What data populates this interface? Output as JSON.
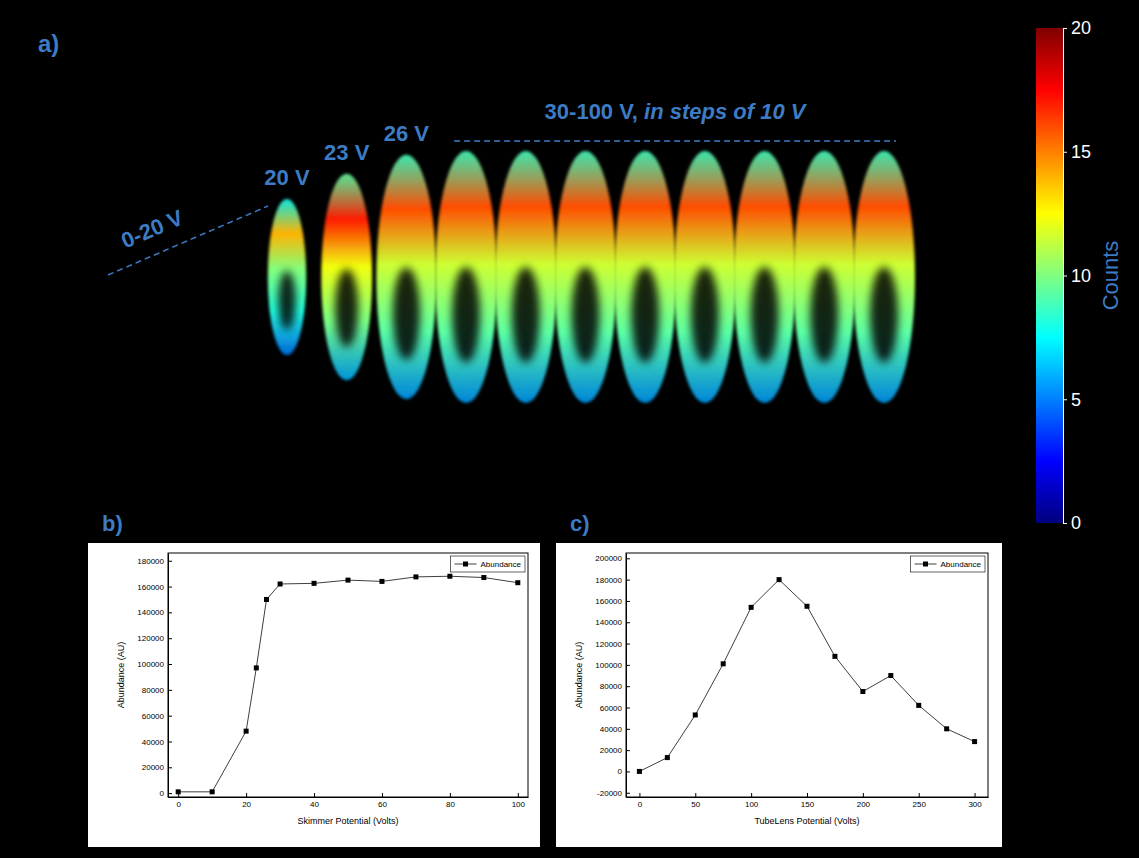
{
  "chart_data": [
    {
      "type": "image",
      "panel": "a)",
      "annotations": [
        "0-20 V",
        "20 V",
        "23 V",
        "26 V",
        "30-100 V, in steps of 10 V"
      ],
      "clouds": {
        "potential": [
          20,
          23,
          26,
          30,
          40,
          50,
          60,
          70,
          80,
          90,
          100
        ],
        "peak_counts": [
          14,
          17,
          16,
          16,
          16,
          16,
          16,
          16,
          16,
          16,
          16
        ],
        "extent": [
          0.62,
          0.82,
          0.97,
          1,
          1,
          1,
          1,
          1,
          1,
          1,
          1
        ]
      },
      "colorbar": {
        "range": [
          0,
          20
        ],
        "ticks": [
          0,
          5,
          10,
          15,
          20
        ],
        "label": "Counts"
      }
    },
    {
      "type": "line",
      "panel": "b)",
      "xlabel": "Skimmer Potential (Volts)",
      "ylabel": "Abundance (AU)",
      "x": [
        0,
        10,
        20,
        23,
        26,
        30,
        40,
        50,
        60,
        70,
        80,
        90,
        100
      ],
      "series": [
        {
          "name": "Abundance",
          "color": "#404040",
          "marker": "square",
          "values": [
            1000,
            1000,
            48000,
            97000,
            150000,
            162000,
            162500,
            165000,
            164000,
            167500,
            168000,
            167000,
            163000
          ]
        }
      ],
      "xlim": [
        -3,
        103
      ],
      "ylim": [
        -3000,
        186000
      ],
      "xticks": [
        0,
        20,
        40,
        60,
        80,
        100
      ],
      "yticks": [
        0,
        20000,
        40000,
        60000,
        80000,
        100000,
        120000,
        140000,
        160000,
        180000
      ],
      "grid": false,
      "legend": "top-right"
    },
    {
      "type": "line",
      "panel": "c)",
      "xlabel": "TubeLens Potential (Volts)",
      "ylabel": "Abundance (AU)",
      "x": [
        0,
        25,
        50,
        75,
        100,
        125,
        150,
        175,
        200,
        225,
        250,
        275,
        300
      ],
      "series": [
        {
          "name": "Abundance",
          "color": "#404040",
          "marker": "square",
          "values": [
            0,
            13000,
            53000,
            101000,
            154000,
            180000,
            155000,
            108000,
            75000,
            90000,
            62000,
            40000,
            28000
          ]
        }
      ],
      "xlim": [
        -12,
        312
      ],
      "ylim": [
        -24000,
        205000
      ],
      "xticks": [
        0,
        50,
        100,
        150,
        200,
        250,
        300
      ],
      "yticks": [
        -20000,
        0,
        20000,
        40000,
        60000,
        80000,
        100000,
        120000,
        140000,
        160000,
        180000,
        200000
      ],
      "grid": false,
      "legend": "top-right"
    }
  ]
}
